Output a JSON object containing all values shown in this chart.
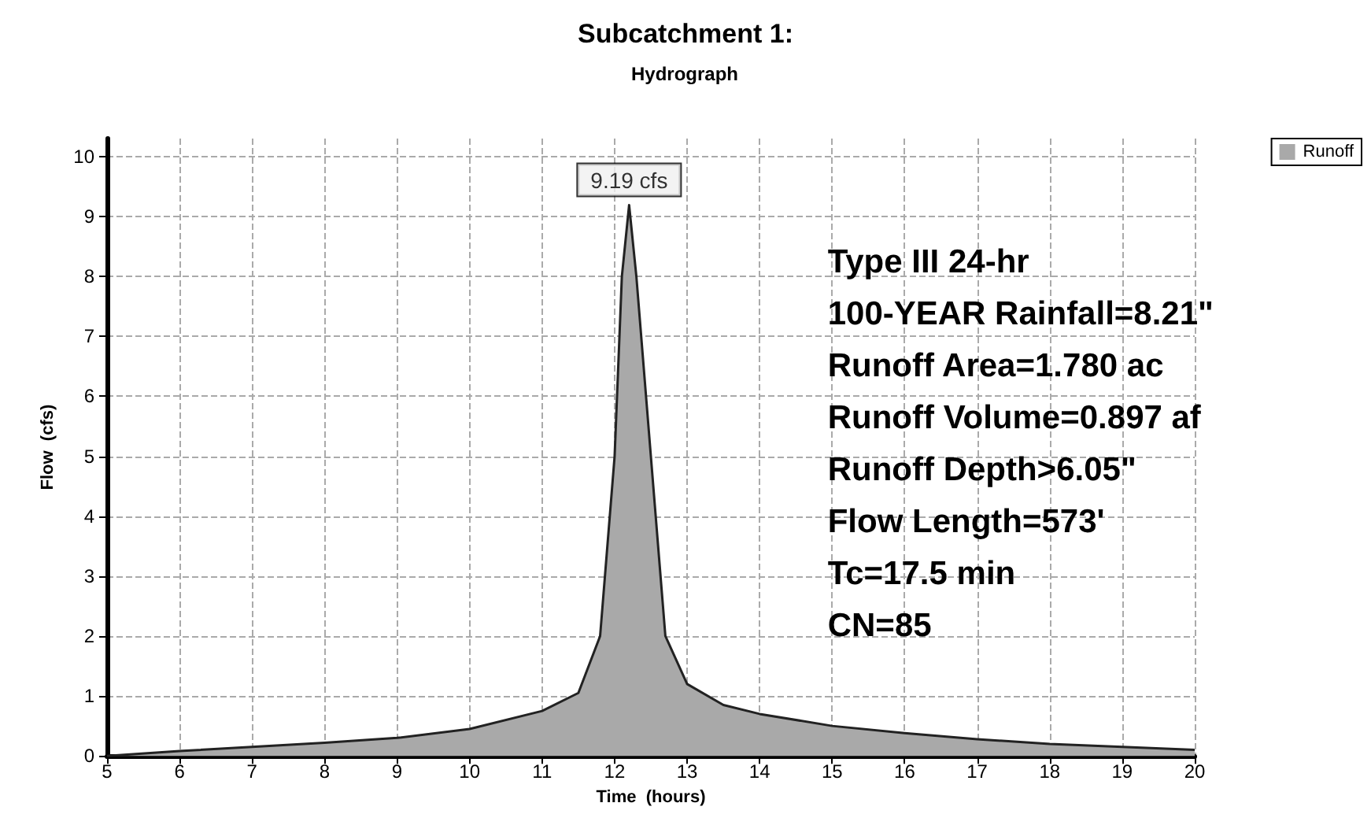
{
  "chart_data": {
    "type": "area",
    "title": "Subcatchment 1:",
    "subtitle": "Hydrograph",
    "xlabel": "Time  (hours)",
    "ylabel": "Flow  (cfs)",
    "x": [
      5,
      6,
      7,
      8,
      9,
      10,
      11,
      11.5,
      11.8,
      12,
      12.1,
      12.2,
      12.3,
      12.5,
      12.7,
      13,
      13.5,
      14,
      15,
      16,
      17,
      18,
      19,
      20
    ],
    "series": [
      {
        "name": "Runoff",
        "color": "#a9a9a9",
        "values": [
          0,
          0.08,
          0.15,
          0.22,
          0.3,
          0.45,
          0.75,
          1.05,
          2,
          5,
          8,
          9.19,
          8,
          5,
          2,
          1.2,
          0.85,
          0.7,
          0.5,
          0.38,
          0.28,
          0.2,
          0.15,
          0.1
        ]
      }
    ],
    "xlim": [
      5,
      20
    ],
    "xticks": [
      5,
      6,
      7,
      8,
      9,
      10,
      11,
      12,
      13,
      14,
      15,
      16,
      17,
      18,
      19,
      20
    ],
    "ylim": [
      0,
      10.3
    ],
    "yticks": [
      0,
      1,
      2,
      3,
      4,
      5,
      6,
      7,
      8,
      9,
      10
    ],
    "annotations": [
      {
        "text": "9.19 cfs",
        "x": 12.2,
        "y": 9.19
      },
      "Type III 24-hr",
      "100-YEAR Rainfall=8.21\"",
      "Runoff Area=1.780 ac",
      "Runoff Volume=0.897 af",
      "Runoff Depth>6.05\"",
      "Flow Length=573'",
      "Tc=17.5 min",
      "CN=85"
    ],
    "grid": true,
    "legend": "top right",
    "marker": "none",
    "line_style": "solid"
  }
}
